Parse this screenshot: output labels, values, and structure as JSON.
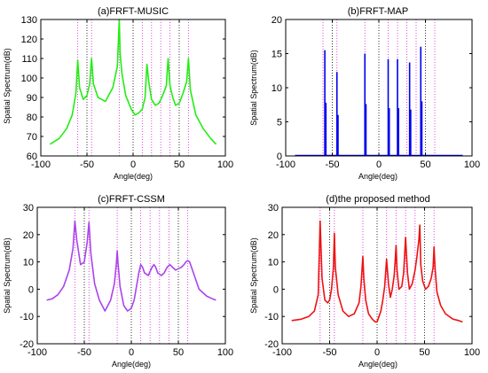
{
  "chart_data": [
    {
      "type": "line",
      "title": "(a)FRFT-MUSIC",
      "xlabel": "Angle(deg)",
      "ylabel": "Spatial Spectrum(dB)",
      "xlim": [
        -100,
        100
      ],
      "ylim": [
        60,
        130
      ],
      "xticks": [
        -100,
        -50,
        0,
        50,
        100
      ],
      "yticks": [
        60,
        70,
        80,
        90,
        100,
        110,
        120,
        130
      ],
      "grid": "x-dotted",
      "color": "#22ee11",
      "true_angles": [
        -60,
        -45,
        -15,
        10,
        20,
        30,
        40,
        60
      ],
      "series": [
        {
          "x": [
            -90,
            -80,
            -72,
            -66,
            -62,
            -60,
            -58,
            -54,
            -50,
            -47,
            -45,
            -43,
            -38,
            -30,
            -22,
            -17,
            -15,
            -14,
            -12,
            -8,
            -2,
            2,
            6,
            10,
            13,
            15,
            17,
            20,
            24,
            28,
            32,
            36,
            38,
            40,
            43,
            46,
            50,
            54,
            58,
            60,
            62,
            68,
            76,
            84,
            90
          ],
          "y": [
            66,
            69,
            74,
            81,
            92,
            109,
            95,
            89,
            91,
            97,
            110,
            97,
            90,
            88,
            95,
            106,
            130,
            112,
            102,
            91,
            84,
            81,
            82,
            84,
            90,
            107,
            98,
            89,
            86,
            87,
            91,
            96,
            110,
            96,
            90,
            86,
            87,
            92,
            98,
            110,
            94,
            81,
            74,
            69,
            66
          ]
        }
      ]
    },
    {
      "type": "bar",
      "title": "(b)FRFT-MAP",
      "xlabel": "Angle(deg)",
      "ylabel": "Spatial Spectrum(dB)",
      "xlim": [
        -100,
        100
      ],
      "ylim": [
        0,
        20
      ],
      "xticks": [
        -100,
        -50,
        0,
        50,
        100
      ],
      "yticks": [
        0,
        5,
        10,
        15,
        20
      ],
      "grid": "x-dotted",
      "color": "#0000ee",
      "true_angles": [
        -60,
        -45,
        -15,
        10,
        20,
        30,
        40,
        60
      ],
      "series": [
        {
          "x": [
            -58,
            -45,
            -15,
            10,
            20,
            33,
            45
          ],
          "y": [
            15.5,
            12.3,
            15.0,
            14.2,
            14.2,
            13.7,
            16.0
          ],
          "inner": [
            7.8,
            6.0,
            7.6,
            7.0,
            7.0,
            6.8,
            8.0
          ]
        }
      ]
    },
    {
      "type": "line",
      "title": "(c)FRFT-CSSM",
      "xlabel": "Angle(deg)",
      "ylabel": "Spatial Spectrum(dB)",
      "xlim": [
        -100,
        100
      ],
      "ylim": [
        -20,
        30
      ],
      "xticks": [
        -100,
        -50,
        0,
        50,
        100
      ],
      "yticks": [
        -20,
        -10,
        0,
        10,
        20,
        30
      ],
      "grid": "x-dotted",
      "color": "#aa44ee",
      "true_angles": [
        -60,
        -45,
        -15,
        10,
        20,
        30,
        40,
        60
      ],
      "series": [
        {
          "x": [
            -90,
            -84,
            -78,
            -72,
            -66,
            -62,
            -60,
            -58,
            -54,
            -50,
            -47,
            -45,
            -43,
            -39,
            -34,
            -28,
            -22,
            -18,
            -16,
            -15,
            -14,
            -12,
            -8,
            -4,
            0,
            3,
            6,
            8,
            10,
            12,
            14,
            18,
            22,
            24,
            26,
            28,
            32,
            35,
            38,
            41,
            44,
            47,
            50,
            53,
            56,
            58,
            60,
            62,
            66,
            72,
            80,
            86,
            90
          ],
          "y": [
            -4,
            -3.5,
            -2,
            1,
            7,
            15,
            25,
            18,
            9,
            10,
            17,
            24.5,
            13,
            2,
            -4,
            -8,
            -4,
            2,
            9,
            14,
            9,
            1,
            -6,
            -8,
            -7,
            -4,
            2,
            6,
            9,
            8,
            6,
            5,
            8,
            9,
            8,
            6,
            5,
            6,
            8,
            9,
            8,
            7,
            7.5,
            8,
            9,
            10,
            10.5,
            10,
            6,
            0,
            -2.5,
            -3.5,
            -4
          ]
        }
      ]
    },
    {
      "type": "line",
      "title": "(d)the proposed method",
      "xlabel": "Angle(deg)",
      "ylabel": "Spatial Spectrum(dB)",
      "xlim": [
        -100,
        100
      ],
      "ylim": [
        -20,
        30
      ],
      "xticks": [
        -100,
        -50,
        0,
        50,
        100
      ],
      "yticks": [
        -20,
        -10,
        0,
        10,
        20,
        30
      ],
      "grid": "x-dotted",
      "color": "#ee1111",
      "true_angles": [
        -60,
        -45,
        -15,
        10,
        20,
        30,
        40,
        60
      ],
      "series": [
        {
          "x": [
            -90,
            -80,
            -72,
            -66,
            -62,
            -60,
            -58,
            -55,
            -52,
            -50,
            -48,
            -46,
            -45,
            -44,
            -41,
            -36,
            -30,
            -24,
            -19,
            -17,
            -15,
            -14,
            -12,
            -9,
            -5,
            -2,
            0,
            2,
            4,
            6,
            8,
            10,
            12,
            14,
            16,
            18,
            19,
            20,
            21,
            23,
            26,
            28,
            30,
            32,
            34,
            37,
            40,
            42,
            44,
            45,
            46,
            48,
            51,
            54,
            57,
            59,
            60,
            61,
            63,
            67,
            72,
            80,
            86,
            90
          ],
          "y": [
            -11.5,
            -11,
            -10,
            -8,
            -2,
            25,
            4,
            -4,
            -5,
            -4,
            0,
            8,
            20.5,
            8,
            -2,
            -8,
            -10,
            -9,
            -5,
            1,
            12,
            4,
            -4,
            -9,
            -11,
            -12,
            -12,
            -10,
            -8,
            -4,
            1,
            11,
            2,
            -3,
            0,
            5,
            10,
            16,
            7,
            0,
            1,
            6,
            19,
            6,
            0,
            2,
            7,
            12,
            18,
            23.5,
            9,
            3,
            0,
            1,
            4,
            8,
            15.5,
            8,
            -1,
            -6,
            -9,
            -11,
            -11.5,
            -12
          ]
        }
      ]
    }
  ]
}
